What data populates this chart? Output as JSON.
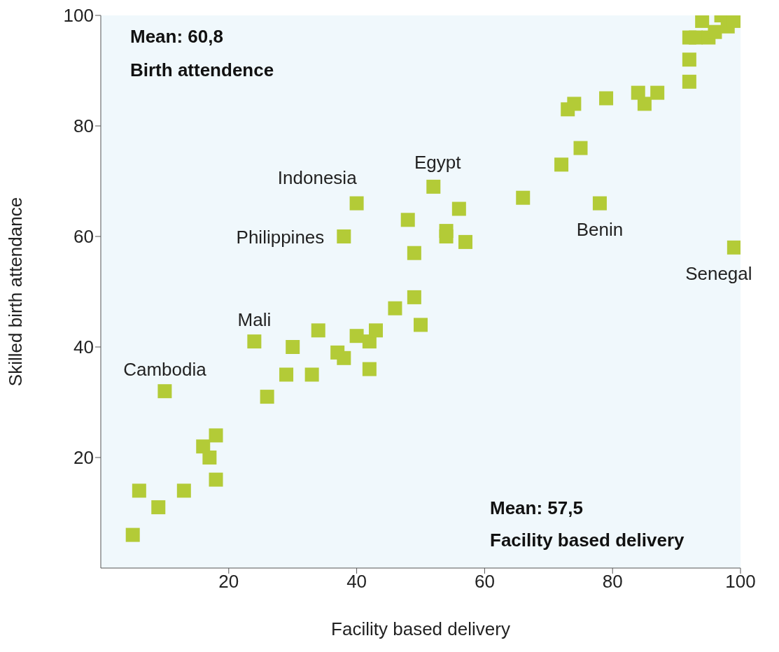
{
  "chart_data": {
    "type": "scatter",
    "xlabel": "Facility based delivery",
    "ylabel": "Skilled birth attendance",
    "x": [
      5,
      6,
      9,
      13,
      10,
      16,
      17,
      18,
      18,
      24,
      26,
      29,
      30,
      33,
      34,
      37,
      38,
      40,
      42,
      42,
      43,
      46,
      49,
      50,
      38,
      40,
      52,
      48,
      49,
      54,
      54,
      56,
      57,
      66,
      72,
      73,
      74,
      75,
      78,
      79,
      84,
      85,
      87,
      92,
      92,
      92,
      93,
      94,
      95,
      96,
      97,
      98,
      99,
      99
    ],
    "values": [
      6,
      14,
      11,
      14,
      32,
      22,
      20,
      24,
      16,
      41,
      31,
      35,
      40,
      35,
      43,
      39,
      38,
      42,
      41,
      36,
      43,
      47,
      49,
      44,
      60,
      66,
      69,
      63,
      57,
      61,
      60,
      65,
      59,
      67,
      73,
      83,
      84,
      76,
      66,
      85,
      86,
      84,
      86,
      88,
      92,
      96,
      96,
      99,
      96,
      97,
      100,
      98,
      99,
      58
    ],
    "color": "#b3cb37",
    "marker": "square",
    "xlim": [
      0,
      100
    ],
    "xticks": [
      20,
      40,
      60,
      80,
      100
    ],
    "ylim": [
      0,
      100
    ],
    "yticks": [
      20,
      40,
      60,
      80,
      100
    ],
    "grid": false,
    "annotations": [
      {
        "text": "Cambodia",
        "x": 10,
        "y": 32
      },
      {
        "text": "Mali",
        "x": 24,
        "y": 41
      },
      {
        "text": "Philippines",
        "x": 38,
        "y": 60
      },
      {
        "text": "Indonesia",
        "x": 40,
        "y": 66
      },
      {
        "text": "Egypt",
        "x": 52,
        "y": 69
      },
      {
        "text": "Benin",
        "x": 78,
        "y": 66
      },
      {
        "text": "Senegal",
        "x": 99,
        "y": 58
      },
      "Mean: 60,8",
      "Birth attendence",
      "Mean: 57,5",
      "Facility based delivery"
    ]
  }
}
